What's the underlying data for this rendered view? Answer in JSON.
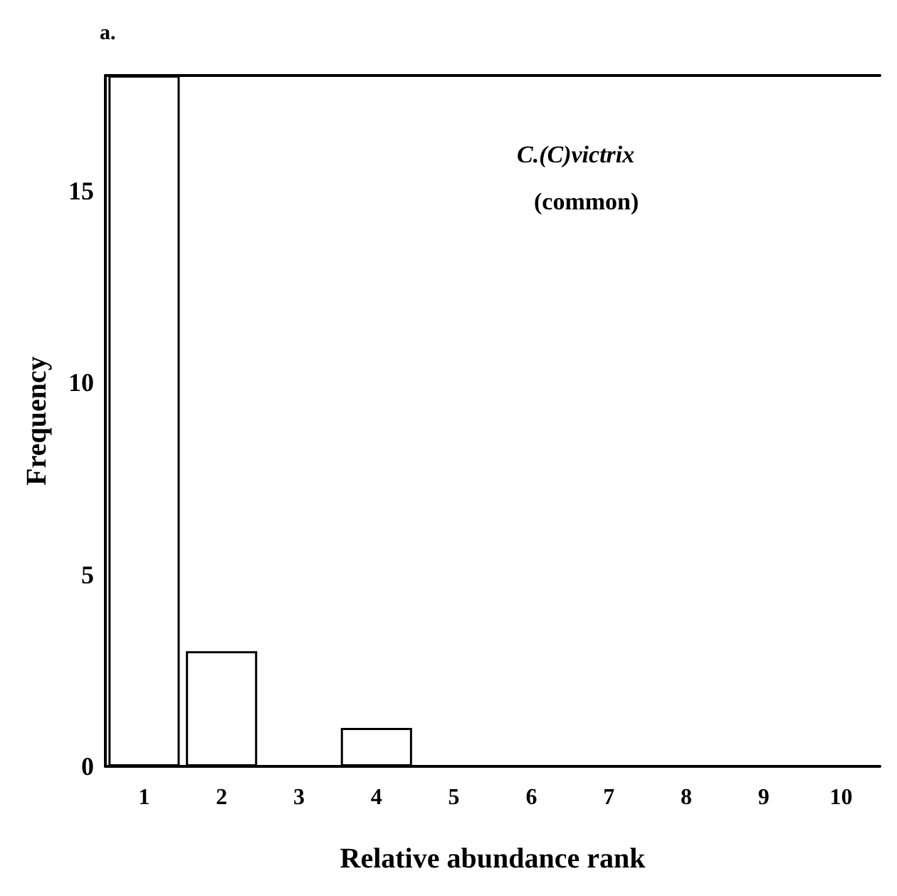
{
  "chart_data": {
    "type": "bar",
    "categories": [
      "1",
      "2",
      "3",
      "4",
      "5",
      "6",
      "7",
      "8",
      "9",
      "10"
    ],
    "values": [
      18,
      3,
      0,
      1,
      0,
      0,
      0,
      0,
      0,
      0
    ],
    "color": "#ffffff",
    "xlabel": "Relative abundance rank",
    "ylabel": "Frequency",
    "ylim": [
      0,
      18
    ],
    "yticks": [
      0,
      5,
      10,
      15
    ],
    "annotations": [
      "a.",
      "C.(C)victrix",
      "(common)"
    ],
    "grid": false
  }
}
